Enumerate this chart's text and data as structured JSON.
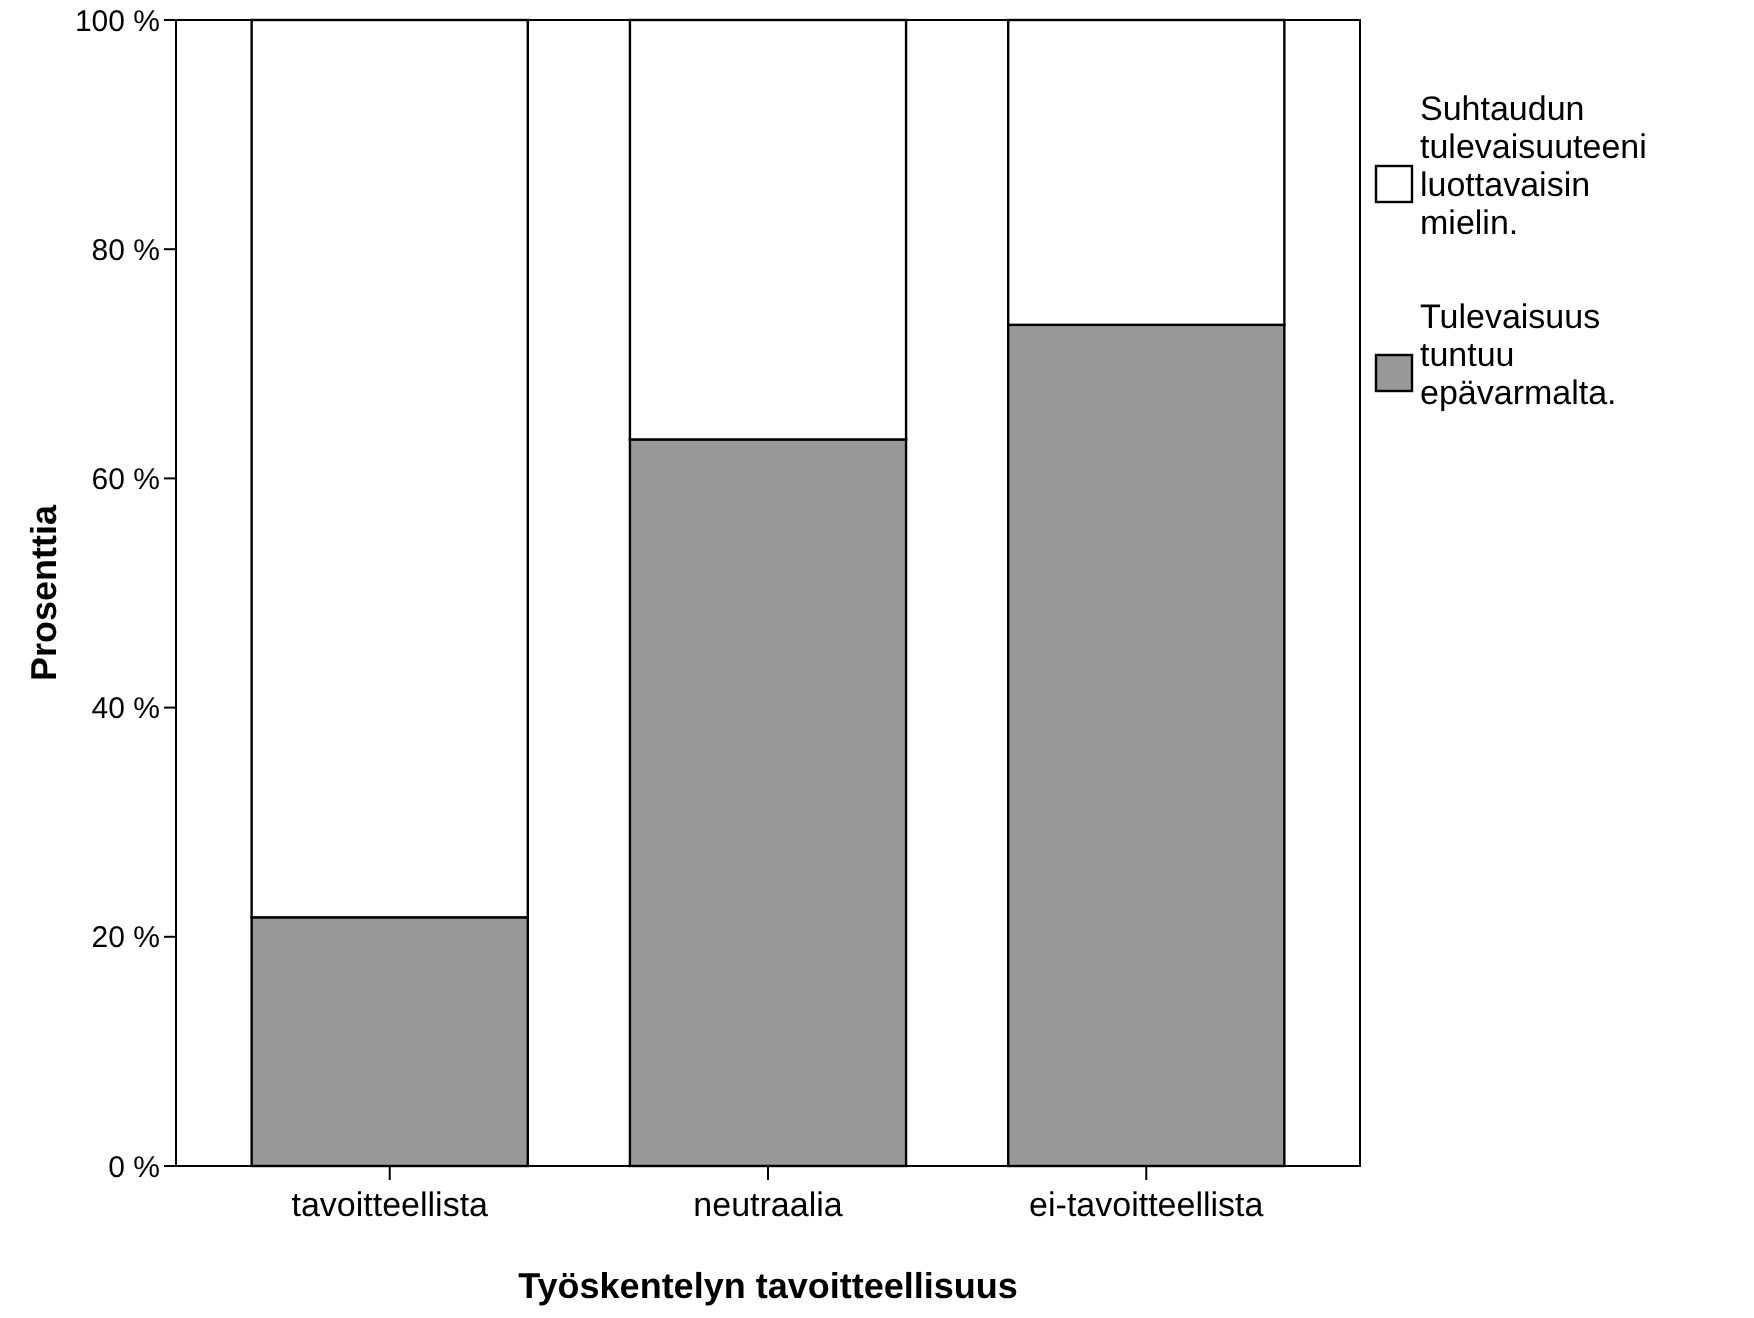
{
  "chart_data": {
    "type": "bar",
    "stacked": true,
    "xlabel": "Työskentelyn tavoitteellisuus",
    "ylabel": "Prosenttia",
    "categories": [
      "tavoitteellista",
      "neutraalia",
      "ei-tavoitteellista"
    ],
    "series": [
      {
        "name": "Tulevaisuus tuntuu epävarmalta.",
        "color": "#999999",
        "values": [
          21.7,
          63.4,
          73.4
        ]
      },
      {
        "name": "Suhtaudun tulevaisuuteeni luottavaisin mielin.",
        "color": "#ffffff",
        "values": [
          78.3,
          36.6,
          26.6
        ]
      }
    ],
    "ylim": [
      0,
      100
    ],
    "yticks": [
      {
        "value": 0,
        "label": "0 %"
      },
      {
        "value": 20,
        "label": "20 %"
      },
      {
        "value": 40,
        "label": "40 %"
      },
      {
        "value": 60,
        "label": "60 %"
      },
      {
        "value": 80,
        "label": "80 %"
      },
      {
        "value": 100,
        "label": "100 %"
      }
    ],
    "legend": "right",
    "grid": false
  }
}
